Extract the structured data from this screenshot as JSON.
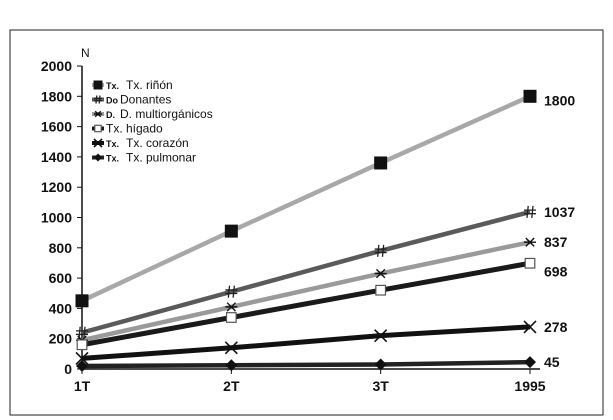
{
  "chart_data": {
    "type": "line",
    "ylabel": "N",
    "categories": [
      "1T",
      "2T",
      "3T",
      "1995"
    ],
    "ylim": [
      0,
      2000
    ],
    "yticks": [
      0,
      200,
      400,
      600,
      800,
      1000,
      1200,
      1400,
      1600,
      1800,
      2000
    ],
    "grid": false,
    "legend_position": "top-left",
    "series": [
      {
        "name": "Tx. riñón",
        "legend_prefix": "Tx.",
        "values": [
          450,
          910,
          1360,
          1800
        ],
        "end_label": "1800",
        "color": "#a8a8a8",
        "marker": "square"
      },
      {
        "name": "Donantes",
        "legend_prefix": "Do",
        "values": [
          240,
          510,
          780,
          1037
        ],
        "end_label": "1037",
        "color": "#5a5a5a",
        "marker": "hash"
      },
      {
        "name": "D. multiorgánicos",
        "legend_prefix": "D.",
        "values": [
          190,
          410,
          630,
          837
        ],
        "end_label": "837",
        "color": "#9a9a9a",
        "marker": "asterisk"
      },
      {
        "name": "Tx. hígado",
        "legend_prefix": "",
        "values": [
          160,
          340,
          520,
          698
        ],
        "end_label": "698",
        "color": "#1a1a1a",
        "marker": "open-square"
      },
      {
        "name": "Tx. corazón",
        "legend_prefix": "Tx.",
        "values": [
          70,
          140,
          220,
          278
        ],
        "end_label": "278",
        "color": "#111111",
        "marker": "x"
      },
      {
        "name": "Tx. pulmonar",
        "legend_prefix": "Tx.",
        "values": [
          20,
          25,
          30,
          45
        ],
        "end_label": "45",
        "color": "#222222",
        "marker": "diamond"
      }
    ]
  }
}
